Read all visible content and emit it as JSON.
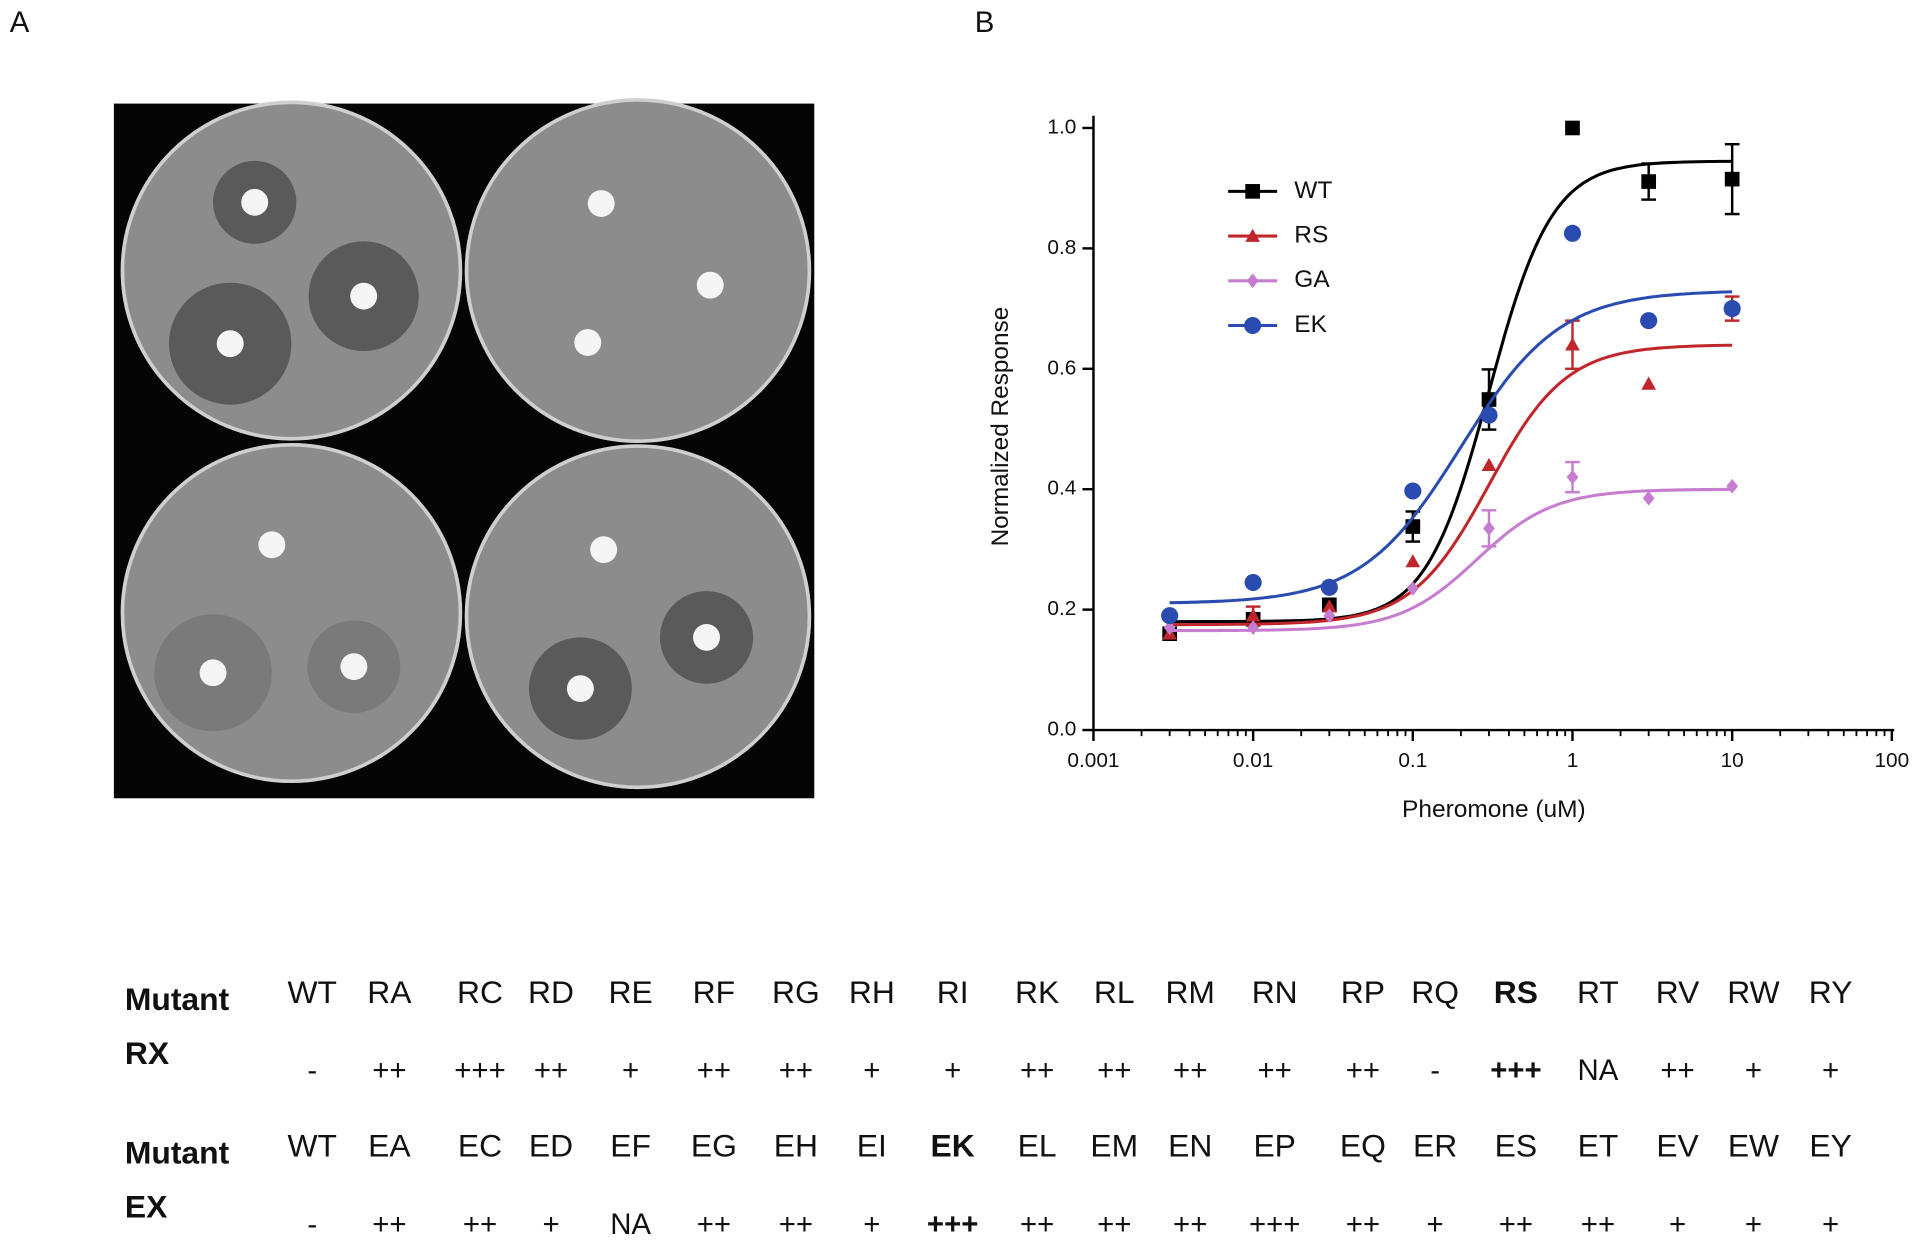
{
  "panels": {
    "a": "A",
    "b": "B"
  },
  "chart_data": {
    "type": "line",
    "xlabel": "Pheromone (uM)",
    "ylabel": "Normalized Response",
    "xscale": "log",
    "xlim": [
      0.001,
      100
    ],
    "xticks": [
      0.001,
      0.01,
      0.1,
      1,
      10,
      100
    ],
    "ylim": [
      0,
      1
    ],
    "yticks": [
      {
        "value": 0,
        "label": "0.0"
      },
      0.2,
      0.4,
      0.6,
      0.8,
      {
        "value": 1,
        "label": "1.0"
      }
    ],
    "legend": "upper left",
    "x": [
      0.003,
      0.01,
      0.03,
      0.1,
      0.3,
      1,
      3,
      10
    ],
    "series": [
      {
        "name": "WT",
        "color": "#000000",
        "marker": "square",
        "values": [
          0.16,
          0.184,
          0.208,
          0.338,
          0.549,
          1.0,
          0.911,
          0.915
        ],
        "errors": [
          null,
          null,
          null,
          0.025,
          0.05,
          null,
          0.03,
          0.058
        ],
        "fit": {
          "bottom": 0.18,
          "top": 0.945,
          "ec50": 0.3,
          "hill": 2.2
        }
      },
      {
        "name": "RS",
        "color": "#c0272d",
        "marker": "triangle",
        "values": [
          0.16,
          0.19,
          0.205,
          0.28,
          0.44,
          0.64,
          0.575,
          0.7
        ],
        "errors": [
          null,
          0.015,
          null,
          null,
          null,
          0.04,
          null,
          0.02
        ],
        "fit": {
          "bottom": 0.175,
          "top": 0.64,
          "ec50": 0.3,
          "hill": 1.8
        }
      },
      {
        "name": "GA",
        "color": "#c77dcf",
        "marker": "diamond",
        "values": [
          0.17,
          0.17,
          0.19,
          0.235,
          0.335,
          0.42,
          0.385,
          0.405
        ],
        "errors": [
          null,
          null,
          null,
          null,
          0.03,
          0.025,
          null,
          null
        ],
        "fit": {
          "bottom": 0.165,
          "top": 0.4,
          "ec50": 0.25,
          "hill": 1.8
        }
      },
      {
        "name": "EK",
        "color": "#2a4cb0",
        "marker": "circle",
        "values": [
          0.19,
          0.245,
          0.237,
          0.397,
          0.523,
          0.825,
          0.68,
          0.7
        ],
        "errors": [
          null,
          null,
          null,
          null,
          null,
          null,
          null,
          null
        ],
        "fit": {
          "bottom": 0.21,
          "top": 0.73,
          "ec50": 0.2,
          "hill": 1.4
        }
      }
    ]
  },
  "table": {
    "rows": [
      {
        "label": [
          "Mutant",
          "RX"
        ],
        "mutants": [
          "WT",
          "RA",
          "RC",
          "RD",
          "RE",
          "RF",
          "RG",
          "RH",
          "RI",
          "RK",
          "RL",
          "RM",
          "RN",
          "RP",
          "RQ",
          "RS",
          "RT",
          "RV",
          "RW",
          "RY"
        ],
        "scores": [
          "-",
          "++",
          "+++",
          "++",
          "+",
          "++",
          "++",
          "+",
          "+",
          "++",
          "++",
          "++",
          "++",
          "++",
          "-",
          "+++",
          "NA",
          "++",
          "+",
          "+"
        ],
        "highlight_index": 15
      },
      {
        "label": [
          "Mutant",
          "EX"
        ],
        "mutants": [
          "WT",
          "EA",
          "EC",
          "ED",
          "EF",
          "EG",
          "EH",
          "EI",
          "EK",
          "EL",
          "EM",
          "EN",
          "EP",
          "EQ",
          "ER",
          "ES",
          "ET",
          "EV",
          "EW",
          "EY"
        ],
        "scores": [
          "-",
          "++",
          "++",
          "+",
          "NA",
          "++",
          "++",
          "+",
          "+++",
          "++",
          "++",
          "++",
          "+++",
          "++",
          "+",
          "++",
          "++",
          "+",
          "+",
          "+"
        ],
        "highlight_index": 8
      }
    ]
  }
}
